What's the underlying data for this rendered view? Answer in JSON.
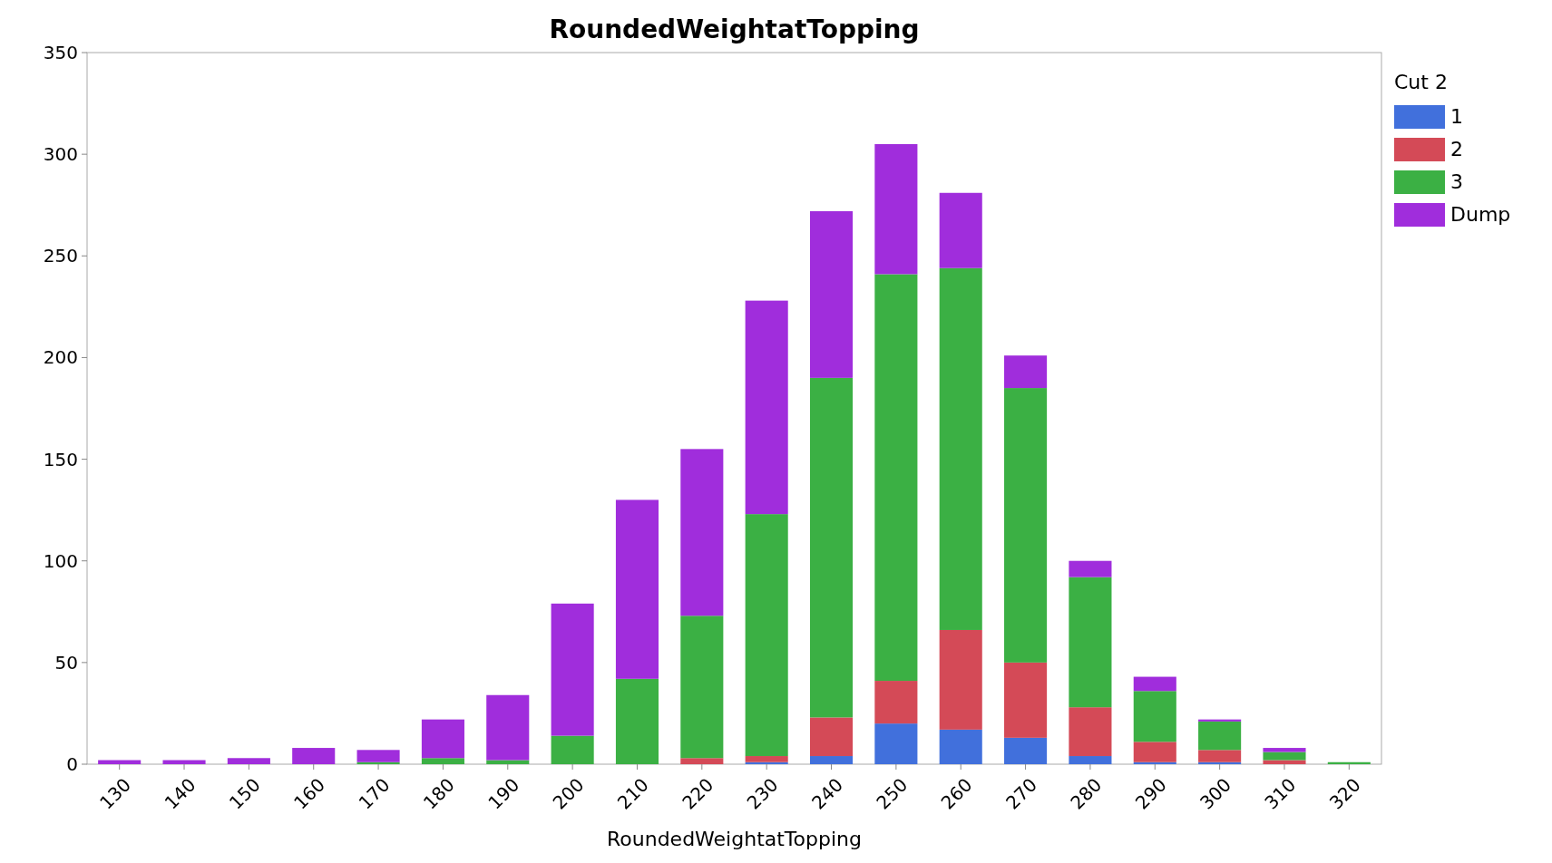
{
  "chart_data": {
    "type": "bar",
    "title": "RoundedWeightatTopping",
    "xlabel": "RoundedWeightatTopping",
    "legend_title": "Cut 2",
    "legend": "right",
    "stacked": true,
    "grid": false,
    "categories": [
      "130",
      "140",
      "150",
      "160",
      "170",
      "180",
      "190",
      "200",
      "210",
      "220",
      "230",
      "240",
      "250",
      "260",
      "270",
      "280",
      "290",
      "300",
      "310",
      "320"
    ],
    "ylim": [
      0,
      350
    ],
    "yticks": [
      0,
      50,
      100,
      150,
      200,
      250,
      300,
      350
    ],
    "series": [
      {
        "name": "1",
        "color": "#4170dc",
        "values": [
          0,
          0,
          0,
          0,
          0,
          0,
          0,
          0,
          0,
          0,
          1,
          4,
          20,
          17,
          13,
          4,
          1,
          1,
          0,
          0
        ]
      },
      {
        "name": "2",
        "color": "#d44a57",
        "values": [
          0,
          0,
          0,
          0,
          0,
          0,
          0,
          0,
          0,
          3,
          3,
          19,
          21,
          49,
          37,
          24,
          10,
          6,
          2,
          0
        ]
      },
      {
        "name": "3",
        "color": "#3bb044",
        "values": [
          0,
          0,
          0,
          0,
          1,
          3,
          2,
          14,
          42,
          70,
          119,
          167,
          200,
          178,
          135,
          64,
          25,
          14,
          4,
          1
        ]
      },
      {
        "name": "Dump",
        "color": "#a02ddc",
        "values": [
          2,
          2,
          3,
          8,
          6,
          19,
          32,
          65,
          88,
          82,
          105,
          82,
          64,
          37,
          16,
          8,
          7,
          1,
          2,
          0
        ]
      }
    ]
  }
}
